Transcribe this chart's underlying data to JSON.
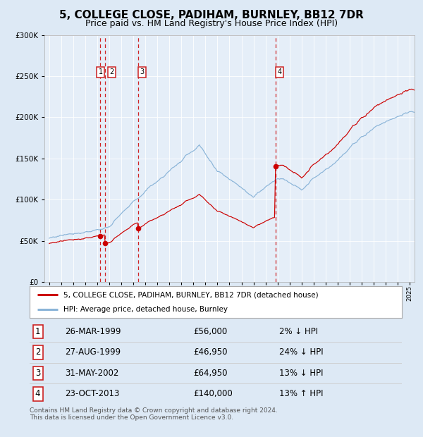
{
  "title": "5, COLLEGE CLOSE, PADIHAM, BURNLEY, BB12 7DR",
  "subtitle": "Price paid vs. HM Land Registry's House Price Index (HPI)",
  "legend_label_red": "5, COLLEGE CLOSE, PADIHAM, BURNLEY, BB12 7DR (detached house)",
  "legend_label_blue": "HPI: Average price, detached house, Burnley",
  "footer": "Contains HM Land Registry data © Crown copyright and database right 2024.\nThis data is licensed under the Open Government Licence v3.0.",
  "transactions": [
    {
      "num": 1,
      "date": "26-MAR-1999",
      "price": 56000,
      "price_str": "£56,000",
      "hpi_pct": "2%",
      "hpi_dir": "↓"
    },
    {
      "num": 2,
      "date": "27-AUG-1999",
      "price": 46950,
      "price_str": "£46,950",
      "hpi_pct": "24%",
      "hpi_dir": "↓"
    },
    {
      "num": 3,
      "date": "31-MAY-2002",
      "price": 64950,
      "price_str": "£64,950",
      "hpi_pct": "13%",
      "hpi_dir": "↓"
    },
    {
      "num": 4,
      "date": "23-OCT-2013",
      "price": 140000,
      "price_str": "£140,000",
      "hpi_pct": "13%",
      "hpi_dir": "↑"
    }
  ],
  "sale_dates_years": [
    1999.23,
    1999.65,
    2002.42,
    2013.81
  ],
  "sale_prices": [
    56000,
    46950,
    64950,
    140000
  ],
  "ylim": [
    0,
    300000
  ],
  "yticks": [
    0,
    50000,
    100000,
    150000,
    200000,
    250000,
    300000
  ],
  "start_year": 1995,
  "end_year": 2025,
  "bg_color": "#dde9f5",
  "plot_bg": "#e5eef8",
  "red_line_color": "#cc0000",
  "blue_line_color": "#8ab4d8",
  "dashed_color": "#cc0000",
  "marker_color": "#cc0000",
  "title_fontsize": 11,
  "subtitle_fontsize": 9,
  "label_box_color": "#cc2222",
  "grid_color": "#ffffff",
  "legend_border_color": "#aaaaaa"
}
